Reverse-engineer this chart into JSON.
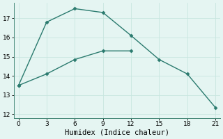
{
  "line1_x": [
    0,
    3,
    6,
    9,
    12,
    15,
    18,
    21
  ],
  "line1_y": [
    13.5,
    16.8,
    17.5,
    17.3,
    16.1,
    14.85,
    14.1,
    12.35
  ],
  "line2_x": [
    0,
    3,
    6,
    9,
    12
  ],
  "line2_y": [
    13.5,
    14.1,
    14.85,
    15.3,
    15.3
  ],
  "xlabel": "Humidex (Indice chaleur)",
  "xlim": [
    -0.5,
    21.5
  ],
  "ylim": [
    11.8,
    17.8
  ],
  "xticks": [
    0,
    3,
    6,
    9,
    12,
    15,
    18,
    21
  ],
  "yticks": [
    12,
    13,
    14,
    15,
    16,
    17
  ],
  "line_color": "#2a7a6e",
  "bg_color": "#e5f5f2",
  "grid_major_color": "#c8e6e0",
  "grid_minor_color": "#daf0eb",
  "marker": "D",
  "marker_size": 2.5,
  "line_width": 1.0,
  "tick_fontsize": 6.5,
  "xlabel_fontsize": 7.5
}
